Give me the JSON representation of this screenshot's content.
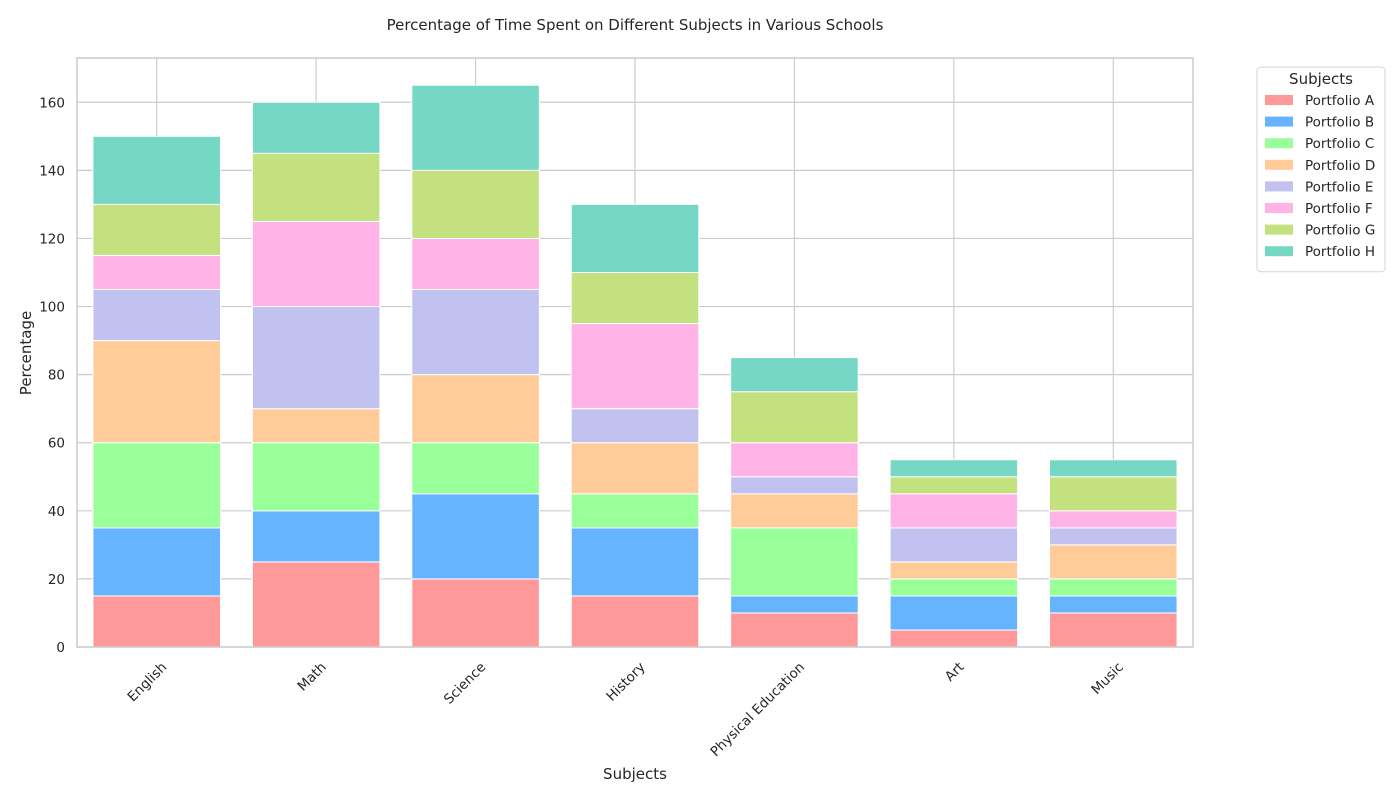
{
  "chart_data": {
    "type": "bar",
    "stacked": true,
    "title": "Percentage of Time Spent on Different Subjects in Various Schools",
    "xlabel": "Subjects",
    "ylabel": "Percentage",
    "ylim": [
      0,
      173
    ],
    "yticks": [
      "0",
      "20",
      "40",
      "60",
      "80",
      "100",
      "120",
      "140",
      "160"
    ],
    "grid": true,
    "legend_title": "Subjects",
    "legend_position": "outside-top-right",
    "categories": [
      "English",
      "Math",
      "Science",
      "History",
      "Physical Education",
      "Art",
      "Music"
    ],
    "series": [
      {
        "name": "Portfolio A",
        "color": "#ff9999",
        "values": [
          15,
          25,
          20,
          15,
          10,
          5,
          10
        ]
      },
      {
        "name": "Portfolio B",
        "color": "#66b3ff",
        "values": [
          20,
          15,
          25,
          20,
          5,
          10,
          5
        ]
      },
      {
        "name": "Portfolio C",
        "color": "#99ff99",
        "values": [
          25,
          20,
          15,
          10,
          20,
          5,
          5
        ]
      },
      {
        "name": "Portfolio D",
        "color": "#ffcc99",
        "values": [
          30,
          10,
          20,
          15,
          10,
          5,
          10
        ]
      },
      {
        "name": "Portfolio E",
        "color": "#c2c2f0",
        "values": [
          15,
          30,
          25,
          10,
          5,
          10,
          5
        ]
      },
      {
        "name": "Portfolio F",
        "color": "#ffb3e6",
        "values": [
          10,
          25,
          15,
          25,
          10,
          10,
          5
        ]
      },
      {
        "name": "Portfolio G",
        "color": "#c4e17f",
        "values": [
          15,
          20,
          20,
          15,
          15,
          5,
          10
        ]
      },
      {
        "name": "Portfolio H",
        "color": "#76d7c4",
        "values": [
          20,
          15,
          25,
          20,
          10,
          5,
          5
        ]
      }
    ]
  }
}
